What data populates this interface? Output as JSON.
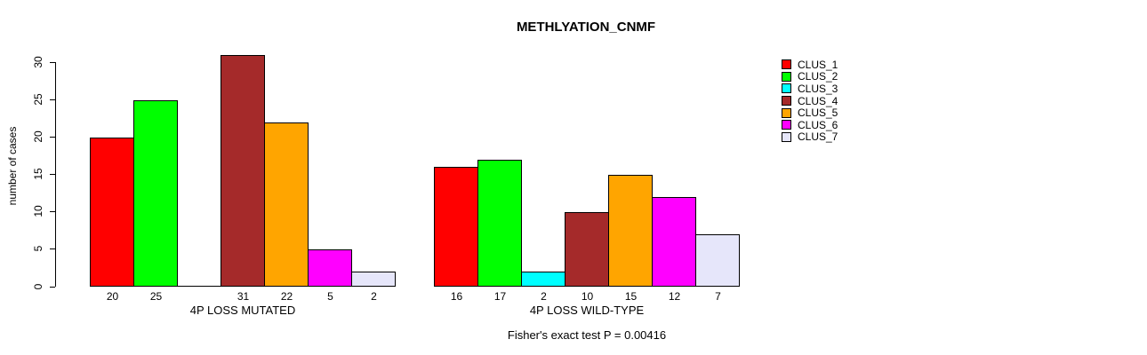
{
  "chart_data": {
    "type": "bar",
    "title": "METHLYATION_CNMF",
    "ylabel": "number of cases",
    "ylim": [
      0,
      30
    ],
    "yticks": [
      0,
      5,
      10,
      15,
      20,
      25,
      30
    ],
    "grid": false,
    "legend_position": "right",
    "categories": [
      "CLUS_1",
      "CLUS_2",
      "CLUS_3",
      "CLUS_4",
      "CLUS_5",
      "CLUS_6",
      "CLUS_7"
    ],
    "colors": [
      "#FF0000",
      "#00FF00",
      "#00FFFF",
      "#A52A2A",
      "#FFA500",
      "#FF00FF",
      "#E6E6FA"
    ],
    "groups": [
      {
        "label": "4P LOSS MUTATED",
        "values": [
          20,
          25,
          0,
          31,
          22,
          5,
          2
        ]
      },
      {
        "label": "4P LOSS WILD-TYPE",
        "values": [
          16,
          17,
          2,
          10,
          15,
          12,
          7
        ]
      }
    ],
    "bar_value_labels_shown": true,
    "footnote": "Fisher's exact test P = 0.00416"
  }
}
